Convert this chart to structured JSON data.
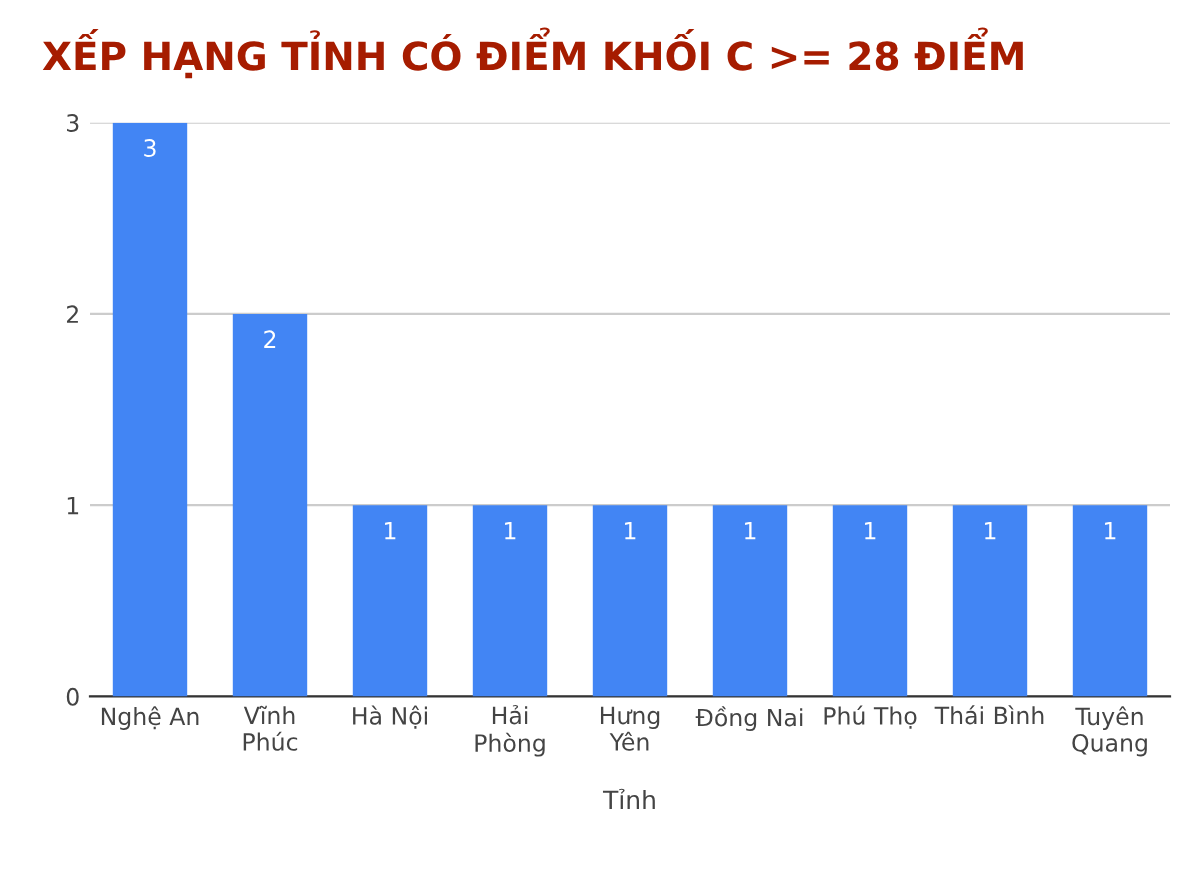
{
  "chart_data": {
    "type": "bar",
    "title": "XẾP HẠNG TỈNH CÓ ĐIỂM KHỐI C >= 28 ĐIỂM",
    "xlabel": "Tỉnh",
    "categories": [
      "Nghệ An",
      "Vĩnh\nPhúc",
      "Hà Nội",
      "Hải\nPhòng",
      "Hưng\nYên",
      "Đồng Nai",
      "Phú Thọ",
      "Thái Bình",
      "Tuyên\nQuang"
    ],
    "values": [
      3,
      2,
      1,
      1,
      1,
      1,
      1,
      1,
      1
    ],
    "color": "#4285f4",
    "ylim": [
      0,
      3
    ],
    "yticks": [
      0,
      1,
      2,
      3
    ],
    "grid": "y",
    "data_labels": true
  }
}
